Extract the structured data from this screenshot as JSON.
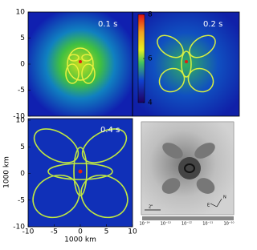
{
  "panels": [
    {
      "label": "0.1 s"
    },
    {
      "label": "0.2 s"
    },
    {
      "label": "0.4 s"
    }
  ],
  "x_ticks": [
    -10,
    -5,
    0,
    5,
    10
  ],
  "y_ticks_top": [
    10,
    5,
    0,
    -5,
    -10
  ],
  "y_ticks_bottom": [
    10,
    5,
    0,
    -5,
    -10
  ],
  "x_label": "1000 km",
  "y_label": "1000 km",
  "colorbar_ticks": [
    8,
    6,
    4
  ],
  "inset": {
    "scale_label": "2\"",
    "compass_east": "E",
    "compass_north": "N",
    "scale_ticks": [
      "10⁻¹⁴",
      "10⁻¹³",
      "10⁻¹²",
      "10⁻¹¹",
      "10⁻¹⁰"
    ]
  }
}
